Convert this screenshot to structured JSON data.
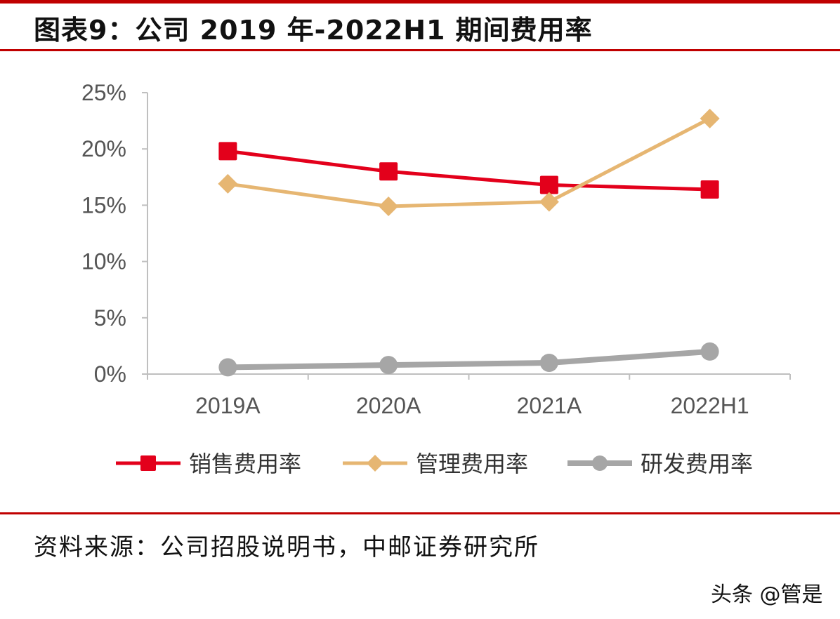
{
  "header": {
    "title": "图表9：公司 2019 年-2022H1 期间费用率"
  },
  "footer": {
    "source": "资料来源：公司招股说明书，中邮证券研究所",
    "watermark": "头条 @管是"
  },
  "chart_data": {
    "type": "line",
    "title": "图表9：公司 2019 年-2022H1 期间费用率",
    "xlabel": "",
    "ylabel": "",
    "categories": [
      "2019A",
      "2020A",
      "2021A",
      "2022H1"
    ],
    "ylim": [
      0,
      25
    ],
    "yticks": [
      0,
      5,
      10,
      15,
      20,
      25
    ],
    "ytick_labels": [
      "0%",
      "5%",
      "10%",
      "15%",
      "20%",
      "25%"
    ],
    "legend_position": "bottom",
    "grid": false,
    "series": [
      {
        "name": "销售费用率",
        "values": [
          19.8,
          18.0,
          16.8,
          16.4
        ],
        "color": "#e3001b",
        "marker": "square"
      },
      {
        "name": "管理费用率",
        "values": [
          16.9,
          14.9,
          15.3,
          22.7
        ],
        "color": "#e6b672",
        "marker": "diamond"
      },
      {
        "name": "研发费用率",
        "values": [
          0.6,
          0.8,
          1.0,
          2.0
        ],
        "color": "#a6a6a6",
        "marker": "circle"
      }
    ]
  }
}
